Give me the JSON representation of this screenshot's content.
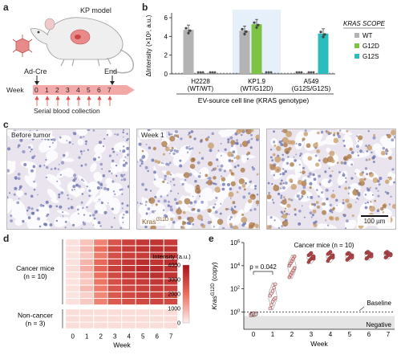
{
  "panels": {
    "a": "a",
    "b": "b",
    "c": "c",
    "d": "d",
    "e": "e"
  },
  "panel_a": {
    "model_title": "KP model",
    "ad_cre": "Ad-Cre",
    "end": "End",
    "week_label": "Week",
    "weeks": [
      "0",
      "1",
      "2",
      "3",
      "4",
      "5",
      "6",
      "7"
    ],
    "serial": "Serial blood collection"
  },
  "panel_c": {
    "labels": [
      "Before tumor",
      "Week 1",
      ""
    ],
    "stain": "Kras",
    "stain_sup": "G12D",
    "scale": "100 µm"
  },
  "chart_data": [
    {
      "type": "bar",
      "panel": "b",
      "ylabel": "ΔIntensity (×10³, a.u.)",
      "xlabel": "EV-source cell line (KRAS genotype)",
      "categories": [
        "H2228 (WT/WT)",
        "KP1.9 (WT/G12D)",
        "A549 (G12S/G12S)"
      ],
      "category_lines": [
        [
          "H2228",
          "(WT/WT)"
        ],
        [
          "KP1.9",
          "(WT/G12D)"
        ],
        [
          "A549",
          "(G12S/G12S)"
        ]
      ],
      "ylim": [
        0,
        6
      ],
      "yticks": [
        "0",
        "2",
        "4",
        "6"
      ],
      "legend_title": "KRAS SCOPE",
      "series": [
        {
          "name": "WT",
          "color": "#b3b3b3",
          "values": [
            4.7,
            4.6,
            0.1
          ]
        },
        {
          "name": "G12D",
          "color": "#7dc242",
          "values": [
            0.1,
            5.3,
            0.1
          ]
        },
        {
          "name": "G12S",
          "color": "#2bbdbd",
          "values": [
            0.1,
            0.1,
            4.3
          ]
        }
      ]
    },
    {
      "type": "heatmap",
      "panel": "d",
      "xlabel": "Week",
      "x": [
        "0",
        "1",
        "2",
        "3",
        "4",
        "5",
        "6",
        "7"
      ],
      "groups": [
        {
          "label": [
            "Cancer mice",
            "(n = 10)"
          ],
          "rows": [
            [
              250,
              700,
              1700,
              2600,
              3000,
              3200,
              3300,
              3100
            ],
            [
              250,
              800,
              2000,
              2800,
              3100,
              3300,
              3400,
              3300
            ],
            [
              200,
              600,
              1800,
              2700,
              3000,
              3100,
              3200,
              3200
            ],
            [
              250,
              900,
              2100,
              2900,
              3200,
              3400,
              3300,
              3400
            ],
            [
              300,
              1000,
              2200,
              3000,
              3300,
              3500,
              3500,
              3300
            ],
            [
              250,
              700,
              2000,
              2800,
              3100,
              3300,
              3400,
              3300
            ],
            [
              200,
              600,
              1900,
              2700,
              3000,
              3100,
              3200,
              3100
            ],
            [
              250,
              800,
              1800,
              2600,
              2900,
              3000,
              3100,
              3000
            ],
            [
              200,
              500,
              1600,
              2500,
              2800,
              3000,
              3000,
              2900
            ],
            [
              250,
              600,
              1700,
              2400,
              2700,
              2800,
              2900,
              2800
            ]
          ]
        },
        {
          "label": [
            "Non-cancer",
            "(n = 3)"
          ],
          "rows": [
            [
              300,
              300,
              300,
              300,
              300,
              300,
              300,
              300
            ],
            [
              300,
              300,
              300,
              300,
              300,
              300,
              300,
              300
            ],
            [
              300,
              300,
              300,
              300,
              300,
              300,
              300,
              300
            ]
          ]
        }
      ],
      "colorbar_label": "Intensity (a.u.)",
      "colorbar_ticks": [
        "0",
        "1000",
        "2000",
        "3000",
        "4000"
      ],
      "vmax": 4000
    },
    {
      "type": "scatter",
      "panel": "e",
      "title": "Cancer mice (n = 10)",
      "ylabel_main": "Kras",
      "ylabel_sup": "G12D",
      "ylabel_unit": " (copy)",
      "xlabel": "Week",
      "x": [
        "0",
        "1",
        "2",
        "3",
        "4",
        "5",
        "6",
        "7"
      ],
      "yticks": [
        {
          "base": "10",
          "exp": "0",
          "v": 0
        },
        {
          "base": "10",
          "exp": "2",
          "v": 2
        },
        {
          "base": "10",
          "exp": "4",
          "v": 4
        },
        {
          "base": "10",
          "exp": "6",
          "v": 6
        }
      ],
      "baseline_label": "Baseline",
      "negative_label": "Negative",
      "pvalue": "p = 0.042",
      "points": [
        [
          -0.2,
          -0.15,
          -0.25,
          -0.2,
          -0.1,
          -0.3,
          -0.2,
          -0.15,
          -0.25,
          -0.2
        ],
        [
          0.3,
          0.6,
          0.9,
          1.1,
          1.2,
          1.4,
          1.6,
          1.8,
          2.1,
          2.4
        ],
        [
          3.0,
          3.2,
          3.4,
          3.6,
          3.8,
          4.0,
          4.2,
          4.4,
          4.6,
          4.8
        ],
        [
          4.3,
          4.5,
          4.6,
          4.7,
          4.8,
          4.9,
          5.0,
          5.1,
          4.8,
          4.6
        ],
        [
          4.4,
          4.6,
          4.7,
          4.8,
          4.9,
          5.0,
          5.1,
          5.2,
          4.9,
          4.7
        ],
        [
          4.5,
          4.6,
          4.7,
          4.8,
          4.9,
          5.0,
          5.1,
          5.0,
          4.8,
          4.7
        ],
        [
          4.6,
          4.7,
          4.8,
          4.9,
          5.0,
          5.1,
          5.2,
          5.1,
          4.9,
          4.8
        ],
        [
          4.7,
          4.8,
          4.9,
          5.0,
          5.0,
          5.1,
          5.2,
          5.1,
          5.0,
          4.9
        ]
      ]
    }
  ]
}
